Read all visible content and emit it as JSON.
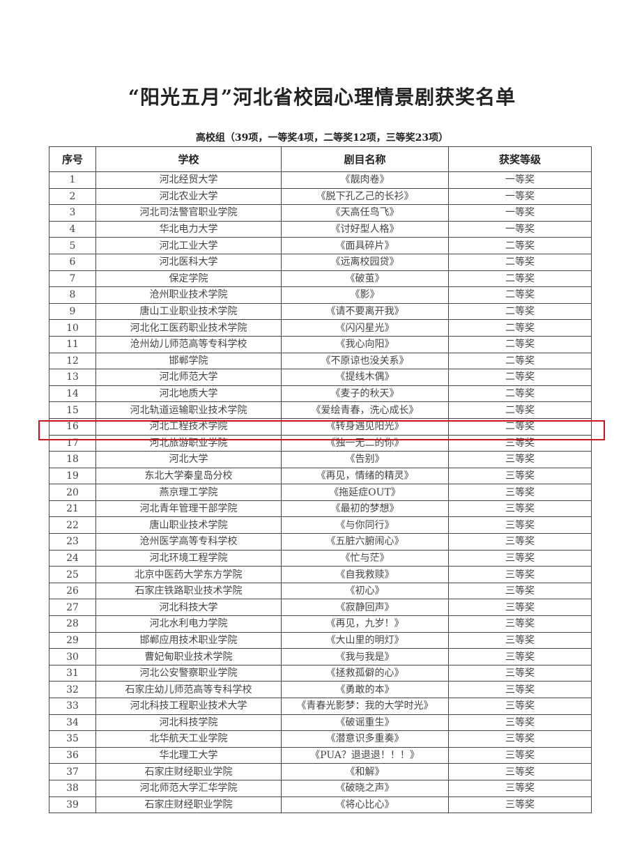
{
  "title": "“阳光五月”河北省校园心理情景剧获奖名单",
  "subtitle": "高校组（39项，一等奖4项，二等奖12项，三等奖23项）",
  "highlight_color": "#c8161d",
  "highlighted_row": "16",
  "table": {
    "headers": [
      "序号",
      "学校",
      "剧目名称",
      "获奖等级"
    ],
    "rows": [
      [
        "1",
        "河北经贸大学",
        "《靓肉卷》",
        "一等奖"
      ],
      [
        "2",
        "河北农业大学",
        "《脱下孔乙己的长衫》",
        "一等奖"
      ],
      [
        "3",
        "河北司法警官职业学院",
        "《天高任鸟飞》",
        "一等奖"
      ],
      [
        "4",
        "华北电力大学",
        "《讨好型人格》",
        "一等奖"
      ],
      [
        "5",
        "河北工业大学",
        "《面具碎片》",
        "二等奖"
      ],
      [
        "6",
        "河北医科大学",
        "《远离校园贷》",
        "二等奖"
      ],
      [
        "7",
        "保定学院",
        "《破茧》",
        "二等奖"
      ],
      [
        "8",
        "沧州职业技术学院",
        "《影》",
        "二等奖"
      ],
      [
        "9",
        "唐山工业职业技术学院",
        "《请不要离开我》",
        "二等奖"
      ],
      [
        "10",
        "河北化工医药职业技术学院",
        "《闪闪星光》",
        "二等奖"
      ],
      [
        "11",
        "沧州幼儿师范高等专科学校",
        "《我心向阳》",
        "二等奖"
      ],
      [
        "12",
        "邯郸学院",
        "《不原谅也没关系》",
        "二等奖"
      ],
      [
        "13",
        "河北师范大学",
        "《提线木偶》",
        "二等奖"
      ],
      [
        "14",
        "河北地质大学",
        "《麦子的秋天》",
        "二等奖"
      ],
      [
        "15",
        "河北轨道运输职业技术学院",
        "《爱绘青春，洗心成长》",
        "二等奖"
      ],
      [
        "16",
        "河北工程技术学院",
        "《转身遇见阳光》",
        "二等奖"
      ],
      [
        "17",
        "河北旅游职业学院",
        "《独一无二的你》",
        "三等奖"
      ],
      [
        "18",
        "河北大学",
        "《告别》",
        "三等奖"
      ],
      [
        "19",
        "东北大学秦皇岛分校",
        "《再见，情绪的精灵》",
        "三等奖"
      ],
      [
        "20",
        "燕京理工学院",
        "《拖延症OUT》",
        "三等奖"
      ],
      [
        "21",
        "河北青年管理干部学院",
        "《最初的梦想》",
        "三等奖"
      ],
      [
        "22",
        "唐山职业技术学院",
        "《与你同行》",
        "三等奖"
      ],
      [
        "23",
        "沧州医学高等专科学校",
        "《五脏六腑闹心》",
        "三等奖"
      ],
      [
        "24",
        "河北环境工程学院",
        "《忙与茫》",
        "三等奖"
      ],
      [
        "25",
        "北京中医药大学东方学院",
        "《自我救赎》",
        "三等奖"
      ],
      [
        "26",
        "石家庄铁路职业技术学院",
        "《初心》",
        "三等奖"
      ],
      [
        "27",
        "河北科技大学",
        "《寂静回声》",
        "三等奖"
      ],
      [
        "28",
        "河北水利电力学院",
        "《再见，九岁！》",
        "三等奖"
      ],
      [
        "29",
        "邯郸应用技术职业学院",
        "《大山里的明灯》",
        "三等奖"
      ],
      [
        "30",
        "曹妃甸职业技术学院",
        "《我与我是》",
        "三等奖"
      ],
      [
        "31",
        "河北公安警察职业学院",
        "《拯救孤僻的心》",
        "三等奖"
      ],
      [
        "32",
        "石家庄幼儿师范高等专科学校",
        "《勇敢的本》",
        "三等奖"
      ],
      [
        "33",
        "河北科技工程职业技术大学",
        "《青春光影梦：我的大学时光》",
        "三等奖"
      ],
      [
        "34",
        "河北科技学院",
        "《破谣重生》",
        "三等奖"
      ],
      [
        "35",
        "北华航天工业学院",
        "《潜意识多重奏》",
        "三等奖"
      ],
      [
        "36",
        "华北理工大学",
        "《PUA？退退退！！！》",
        "三等奖"
      ],
      [
        "37",
        "石家庄财经职业学院",
        "《和解》",
        "三等奖"
      ],
      [
        "38",
        "河北师范大学汇华学院",
        "《破晓之声》",
        "三等奖"
      ],
      [
        "39",
        "石家庄财经职业学院",
        "《将心比心》",
        "三等奖"
      ]
    ]
  }
}
